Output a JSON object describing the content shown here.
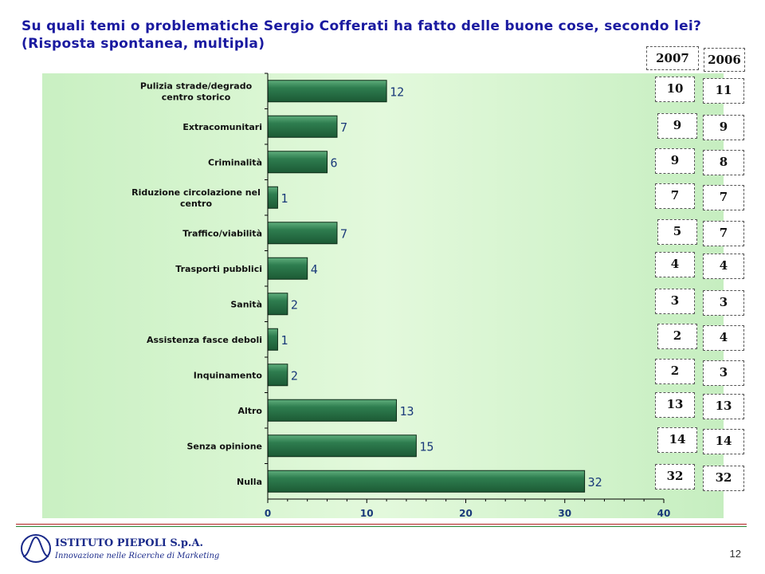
{
  "title_line1": "Su quali temi o problematiche Sergio Cofferati ha fatto delle buone cose, secondo lei?",
  "title_line2": "(Risposta spontanea, multipla)",
  "chart_data": {
    "type": "bar",
    "orientation": "horizontal",
    "categories": [
      "Pulizia strade/degrado centro storico",
      "Extracomunitari",
      "Criminalità",
      "Riduzione circolazione nel centro",
      "Traffico/viabilità",
      "Trasporti pubblici",
      "Sanità",
      "Assistenza fasce deboli",
      "Inquinamento",
      "Altro",
      "Senza opinione",
      "Nulla"
    ],
    "category_lines": [
      [
        "Pulizia strade/degrado",
        "centro storico"
      ],
      [
        "Extracomunitari"
      ],
      [
        "Criminalità"
      ],
      [
        "Riduzione circolazione nel",
        "centro"
      ],
      [
        "Traffico/viabilità"
      ],
      [
        "Trasporti pubblici"
      ],
      [
        "Sanità"
      ],
      [
        "Assistenza fasce deboli"
      ],
      [
        "Inquinamento"
      ],
      [
        "Altro"
      ],
      [
        "Senza opinione"
      ],
      [
        "Nulla"
      ]
    ],
    "values": [
      12,
      7,
      6,
      1,
      7,
      4,
      2,
      1,
      2,
      13,
      15,
      32
    ],
    "xlim": [
      0,
      40
    ],
    "xticks": [
      0,
      10,
      20,
      30,
      40
    ],
    "bar_color": "#2e7d4f",
    "plot_background": "#d6f5cf"
  },
  "comparison": {
    "year_2007_label": "2007",
    "year_2006_label": "2006",
    "values_2007": [
      10,
      9,
      9,
      7,
      5,
      4,
      3,
      2,
      2,
      13,
      14,
      32
    ],
    "values_2006": [
      11,
      9,
      8,
      7,
      7,
      4,
      3,
      4,
      3,
      13,
      14,
      32
    ]
  },
  "footer": {
    "company": "ISTITUTO PIEPOLI S.p.A.",
    "tagline": "Innovazione nelle Ricerche di Marketing",
    "page_number": "12"
  }
}
